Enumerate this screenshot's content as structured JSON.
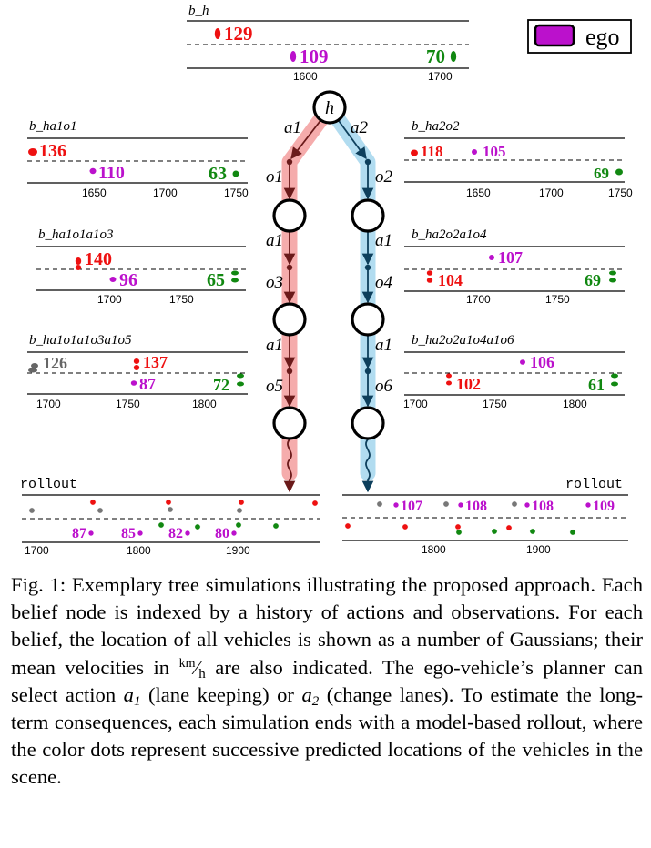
{
  "colors": {
    "red": "#ee1111",
    "magenta": "#bb11cc",
    "green": "#118811",
    "gray": "#666666",
    "path_red": "#f4a3a3",
    "path_blue": "#a9d8ee",
    "arrow_red": "#6a1a1a",
    "arrow_blue": "#0d3f5c"
  },
  "legend": {
    "label": "ego"
  },
  "tree": {
    "root_label": "h",
    "left": {
      "a1": "a1",
      "o1": "o1",
      "a2": "a1",
      "o2": "o3",
      "a3": "a1",
      "o3": "o5"
    },
    "right": {
      "a1": "a2",
      "o1": "o2",
      "a2": "a1",
      "o2": "o4",
      "a3": "a1",
      "o3": "o6"
    }
  },
  "panels": {
    "bh": {
      "title": "b_h",
      "vehicles": [
        {
          "v": "129",
          "color": "red"
        },
        {
          "v": "109",
          "color": "magenta"
        },
        {
          "v": "70",
          "color": "green"
        }
      ],
      "ticks": [
        "1600",
        "1700"
      ]
    },
    "l1": {
      "title": "b_ha1o1",
      "vehicles": [
        {
          "v": "136",
          "color": "red"
        },
        {
          "v": "110",
          "color": "magenta"
        },
        {
          "v": "63",
          "color": "green"
        }
      ],
      "ticks": [
        "1650",
        "1700",
        "1750"
      ]
    },
    "l2": {
      "title": "b_ha1o1a1o3",
      "vehicles": [
        {
          "v": "140",
          "color": "red"
        },
        {
          "v": "96",
          "color": "magenta"
        },
        {
          "v": "65",
          "color": "green"
        }
      ],
      "ticks": [
        "1700",
        "1750"
      ]
    },
    "l3": {
      "title": "b_ha1o1a1o3a1o5",
      "vehicles": [
        {
          "v": "126",
          "color": "gray"
        },
        {
          "v": "137",
          "color": "red"
        },
        {
          "v": "87",
          "color": "magenta"
        },
        {
          "v": "72",
          "color": "green"
        }
      ],
      "ticks": [
        "1700",
        "1750",
        "1800"
      ]
    },
    "r1": {
      "title": "b_ha2o2",
      "vehicles": [
        {
          "v": "118",
          "color": "red"
        },
        {
          "v": "105",
          "color": "magenta"
        },
        {
          "v": "69",
          "color": "green"
        }
      ],
      "ticks": [
        "1650",
        "1700",
        "1750"
      ]
    },
    "r2": {
      "title": "b_ha2o2a1o4",
      "vehicles": [
        {
          "v": "107",
          "color": "magenta"
        },
        {
          "v": "104",
          "color": "red"
        },
        {
          "v": "69",
          "color": "green"
        }
      ],
      "ticks": [
        "1700",
        "1750"
      ]
    },
    "r3": {
      "title": "b_ha2o2a1o4a1o6",
      "vehicles": [
        {
          "v": "106",
          "color": "magenta"
        },
        {
          "v": "102",
          "color": "red"
        },
        {
          "v": "61",
          "color": "green"
        }
      ],
      "ticks": [
        "1700",
        "1750",
        "1800"
      ]
    }
  },
  "rollouts": {
    "label": "rollout",
    "left": {
      "velocities": [
        "87",
        "85",
        "82",
        "80"
      ],
      "ticks": [
        "1700",
        "1800",
        "1900"
      ]
    },
    "right": {
      "velocities": [
        "107",
        "108",
        "108",
        "109"
      ],
      "ticks": [
        "1800",
        "1900"
      ]
    }
  },
  "caption": {
    "label": "Fig. 1:",
    "part1": "Exemplary tree simulations illustrating the proposed approach. Each belief node is indexed by a history of actions and observations. For each belief, the location of all vehicles is shown as a number of Gaussians; their mean velocities in",
    "unit_num": "km",
    "unit_den": "h",
    "part2": "are also indicated. The ego-vehicle’s planner can select action",
    "action1": "a",
    "action1_sub": "1",
    "part3": "(lane keeping) or",
    "action2": "a",
    "action2_sub": "2",
    "part4": "(change lanes). To estimate the long-term consequences, each simulation ends with a model-based rollout, where the color dots represent successive predicted locations of the vehicles in the scene."
  }
}
